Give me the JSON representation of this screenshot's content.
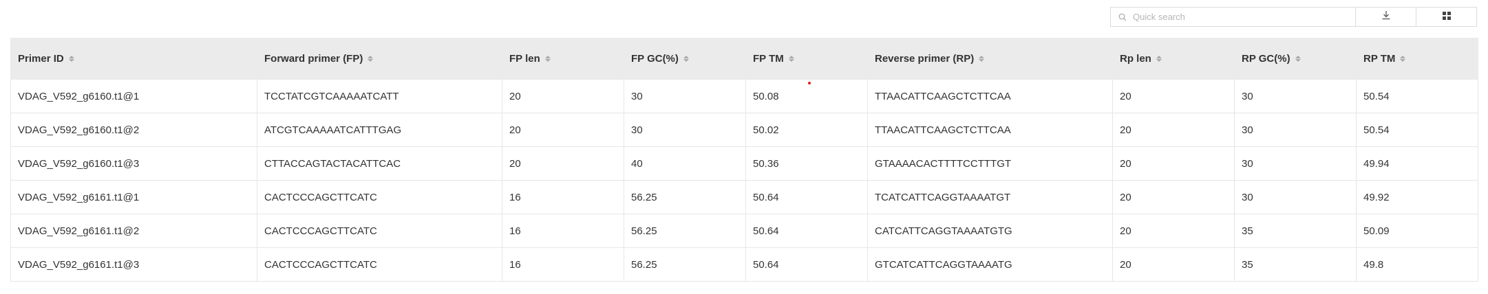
{
  "toolbar": {
    "search_placeholder": "Quick search",
    "search_icon": "search-icon",
    "download_icon": "download-icon",
    "grid_icon": "grid-icon"
  },
  "table": {
    "columns": [
      "Primer ID",
      "Forward primer (FP)",
      "FP len",
      "FP GC(%)",
      "FP TM",
      "Reverse primer (RP)",
      "Rp len",
      "RP GC(%)",
      "RP TM"
    ],
    "rows": [
      [
        "VDAG_V592_g6160.t1@1",
        "TCCTATCGTCAAAAATCATT",
        "20",
        "30",
        "50.08",
        "TTAACATTCAAGCTCTTCAA",
        "20",
        "30",
        "50.54"
      ],
      [
        "VDAG_V592_g6160.t1@2",
        "ATCGTCAAAAATCATTTGAG",
        "20",
        "30",
        "50.02",
        "TTAACATTCAAGCTCTTCAA",
        "20",
        "30",
        "50.54"
      ],
      [
        "VDAG_V592_g6160.t1@3",
        "CTTACCAGTACTACATTCAC",
        "20",
        "40",
        "50.36",
        "GTAAAACACTTTTCCTTTGT",
        "20",
        "30",
        "49.94"
      ],
      [
        "VDAG_V592_g6161.t1@1",
        "CACTCCCAGCTTCATC",
        "16",
        "56.25",
        "50.64",
        "TCATCATTCAGGTAAAATGT",
        "20",
        "30",
        "49.92"
      ],
      [
        "VDAG_V592_g6161.t1@2",
        "CACTCCCAGCTTCATC",
        "16",
        "56.25",
        "50.64",
        "CATCATTCAGGTAAAATGTG",
        "20",
        "35",
        "50.09"
      ],
      [
        "VDAG_V592_g6161.t1@3",
        "CACTCCCAGCTTCATC",
        "16",
        "56.25",
        "50.64",
        "GTCATCATTCAGGTAAAATG",
        "20",
        "35",
        "49.8"
      ]
    ]
  },
  "colors": {
    "header_bg": "#ebebeb",
    "border": "#e6e6e6",
    "text": "#333333",
    "sort_icon": "#a9a9a9"
  }
}
